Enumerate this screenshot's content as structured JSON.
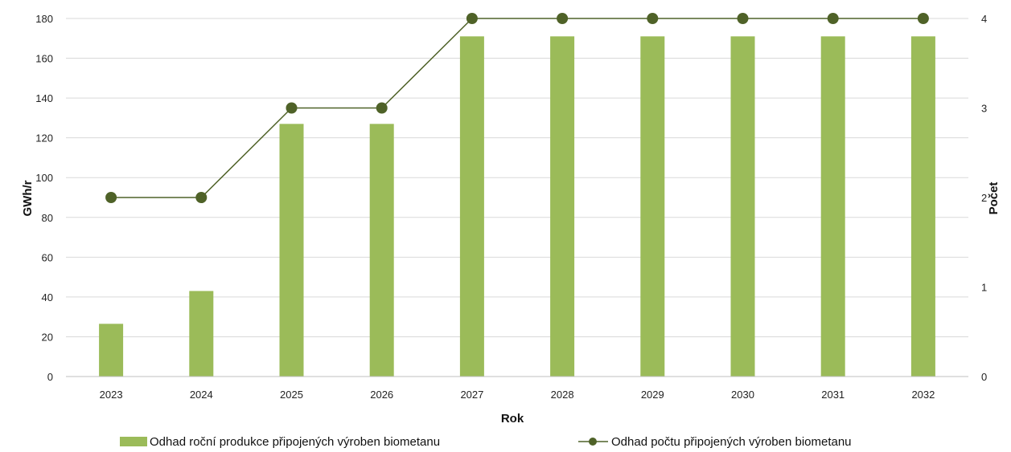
{
  "chart_data": {
    "type": "bar+line",
    "categories": [
      "2023",
      "2024",
      "2025",
      "2026",
      "2027",
      "2028",
      "2029",
      "2030",
      "2031",
      "2032"
    ],
    "series": [
      {
        "name": "Odhad roční produkce připojených výroben biometanu",
        "type": "bar",
        "axis": "left",
        "values": [
          26.5,
          43,
          127,
          127,
          171,
          171,
          171,
          171,
          171,
          171
        ]
      },
      {
        "name": "Odhad počtu připojených výroben biometanu",
        "type": "line",
        "axis": "right",
        "values": [
          2,
          2,
          3,
          3,
          4,
          4,
          4,
          4,
          4,
          4
        ]
      }
    ],
    "xlabel": "Rok",
    "ylabel": "GWh/r",
    "y2label": "Počet",
    "ylim": [
      0,
      180
    ],
    "yticks": [
      "0",
      "20",
      "40",
      "60",
      "80",
      "100",
      "120",
      "140",
      "160",
      "180"
    ],
    "y2lim": [
      0,
      4
    ],
    "y2ticks": [
      "0",
      "1",
      "2",
      "3",
      "4"
    ],
    "grid": true,
    "legend": "bottom",
    "colors": {
      "bar": "#9bbb59",
      "line": "#4f6228",
      "grid": "#d9d9d9",
      "axis": "#bfbfbf"
    }
  }
}
